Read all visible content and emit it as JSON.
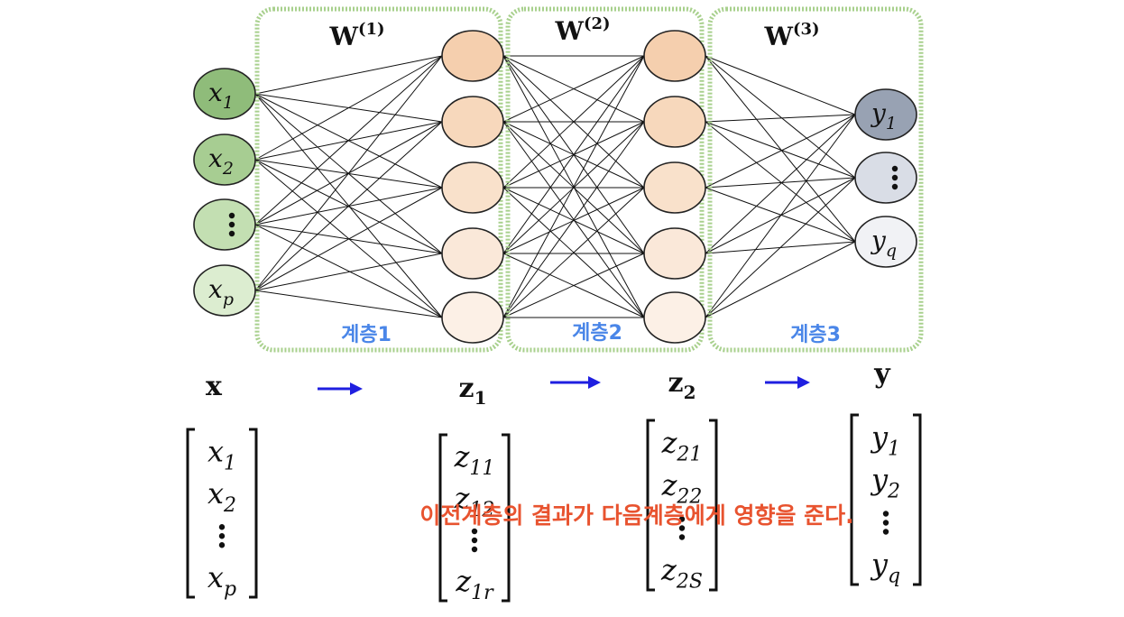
{
  "weights": [
    {
      "base": "W",
      "sup": "(1)"
    },
    {
      "base": "W",
      "sup": "(2)"
    },
    {
      "base": "W",
      "sup": "(3)"
    }
  ],
  "layers": [
    "계층1",
    "계층2",
    "계층3"
  ],
  "inputs": [
    {
      "base": "x",
      "sub": "1"
    },
    {
      "base": "x",
      "sub": "2"
    },
    {
      "base": "",
      "sub": "",
      "dots": true
    },
    {
      "base": "x",
      "sub": "p"
    }
  ],
  "outputs": [
    {
      "base": "y",
      "sub": "1"
    },
    {
      "base": "",
      "sub": "",
      "dots": true
    },
    {
      "base": "y",
      "sub": "q"
    }
  ],
  "vec_names": [
    {
      "base": "x",
      "sub": ""
    },
    {
      "base": "z",
      "sub": "1"
    },
    {
      "base": "z",
      "sub": "2"
    },
    {
      "base": "y",
      "sub": ""
    }
  ],
  "vec_x": [
    {
      "base": "x",
      "sub": "1"
    },
    {
      "base": "x",
      "sub": "2"
    },
    {
      "base": "⋮",
      "sub": ""
    },
    {
      "base": "x",
      "sub": "p"
    }
  ],
  "vec_z1": [
    {
      "base": "z",
      "sub": "11"
    },
    {
      "base": "z",
      "sub": "12"
    },
    {
      "base": "⋮",
      "sub": ""
    },
    {
      "base": "z",
      "sub": "1r"
    }
  ],
  "vec_z2": [
    {
      "base": "z",
      "sub": "21"
    },
    {
      "base": "z",
      "sub": "22"
    },
    {
      "base": "⋮",
      "sub": ""
    },
    {
      "base": "z",
      "sub": "2S"
    }
  ],
  "vec_y": [
    {
      "base": "y",
      "sub": "1"
    },
    {
      "base": "y",
      "sub": "2"
    },
    {
      "base": "⋮",
      "sub": ""
    },
    {
      "base": "y",
      "sub": "q"
    }
  ],
  "overlay_text": "이전계층의 결과가 다음계층에게 영향을 준다.",
  "colors": {
    "layer_box": "#a8d08d",
    "layer_label": "#4a86e8",
    "arrow": "#1f1fe0",
    "overlay": "#e8532f",
    "input_fill": [
      "#8fbc7a",
      "#a7cd92",
      "#c3dfb2",
      "#dcedd0"
    ],
    "hidden_fill": [
      "#f5cfae",
      "#f7d8bc",
      "#f9e1cb",
      "#fae8d9",
      "#fcf0e6"
    ],
    "output_fill": [
      "#98a2b3",
      "#d9dde6",
      "#f1f2f5"
    ]
  }
}
